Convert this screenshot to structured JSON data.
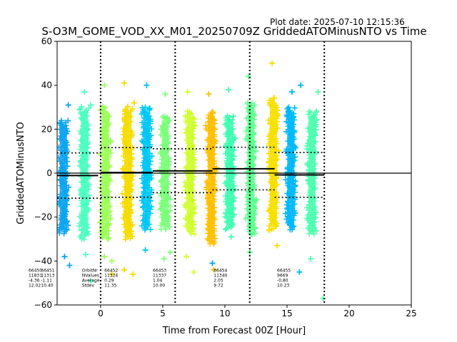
{
  "chart_data": {
    "type": "scatter",
    "title": "S-O3M_GOME_VOD_XX_M01_20250709Z GriddedATOMinusNTO vs Time",
    "plot_date": "Plot date: 2025-07-10 12:15:36",
    "xlabel": "Time from Forecast 00Z [Hour]",
    "ylabel": "GriddedATOMinusNTO",
    "xlim": [
      -3.5,
      25
    ],
    "ylim": [
      -60,
      60
    ],
    "xticks": [
      0,
      5,
      10,
      15,
      20,
      25
    ],
    "yticks": [
      -60,
      -40,
      -20,
      0,
      20,
      40,
      60
    ],
    "grid": false,
    "forecast_boundaries": [
      0,
      6,
      12,
      18
    ],
    "zero_line": 0,
    "marker": "+",
    "colormap": "jet",
    "strips": [
      {
        "x": -3.0,
        "center": -2,
        "half": 26,
        "color": "#0ea5f0"
      },
      {
        "x": -1.3,
        "center": 0,
        "half": 30,
        "color": "#4dffc0"
      },
      {
        "x": 0.4,
        "center": 0,
        "half": 30,
        "color": "#9dff5a"
      },
      {
        "x": 2.2,
        "center": 0,
        "half": 30,
        "color": "#f6dc00"
      },
      {
        "x": 3.7,
        "center": 2,
        "half": 28,
        "color": "#00c8f4"
      },
      {
        "x": 5.2,
        "center": 0,
        "half": 26,
        "color": "#7cff7a"
      },
      {
        "x": 7.2,
        "center": 0,
        "half": 28,
        "color": "#cfff30"
      },
      {
        "x": 8.9,
        "center": -2,
        "half": 30,
        "color": "#ffc000"
      },
      {
        "x": 10.4,
        "center": 0,
        "half": 26,
        "color": "#40ffb0"
      },
      {
        "x": 12.1,
        "center": 2,
        "half": 30,
        "color": "#60ff90"
      },
      {
        "x": 13.9,
        "center": 4,
        "half": 30,
        "color": "#f8e000"
      },
      {
        "x": 15.3,
        "center": 2,
        "half": 28,
        "color": "#00b8f8"
      },
      {
        "x": 17.0,
        "center": 0,
        "half": 28,
        "color": "#50ffb0"
      }
    ],
    "outliers": [
      {
        "x": -2.6,
        "y": 31,
        "color": "#0ea5f0"
      },
      {
        "x": -2.9,
        "y": -38,
        "color": "#0ea5f0"
      },
      {
        "x": -2.5,
        "y": -42,
        "color": "#0ea5f0"
      },
      {
        "x": -1.3,
        "y": 37,
        "color": "#4dffc0"
      },
      {
        "x": -0.8,
        "y": 31,
        "color": "#4dffc0"
      },
      {
        "x": -1.2,
        "y": -37,
        "color": "#4dffc0"
      },
      {
        "x": 0.3,
        "y": 40,
        "color": "#9dff5a"
      },
      {
        "x": 0.3,
        "y": -38,
        "color": "#9dff5a"
      },
      {
        "x": 0.9,
        "y": -40,
        "color": "#9dff5a"
      },
      {
        "x": 1.9,
        "y": 41,
        "color": "#f6dc00"
      },
      {
        "x": 2.7,
        "y": 32,
        "color": "#f6dc00"
      },
      {
        "x": 1.9,
        "y": -44,
        "color": "#f6dc00"
      },
      {
        "x": 2.6,
        "y": -46,
        "color": "#f6dc00"
      },
      {
        "x": 3.7,
        "y": 40,
        "color": "#00c8f4"
      },
      {
        "x": 3.6,
        "y": -35,
        "color": "#00c8f4"
      },
      {
        "x": 5.2,
        "y": 36,
        "color": "#7cff7a"
      },
      {
        "x": 5.1,
        "y": -39,
        "color": "#7cff7a"
      },
      {
        "x": 5.6,
        "y": -36,
        "color": "#7cff7a"
      },
      {
        "x": 7.0,
        "y": 37,
        "color": "#cfff30"
      },
      {
        "x": 7.5,
        "y": -45,
        "color": "#cfff30"
      },
      {
        "x": 6.9,
        "y": -38,
        "color": "#cfff30"
      },
      {
        "x": 8.7,
        "y": 36,
        "color": "#ffc000"
      },
      {
        "x": 9.2,
        "y": 20,
        "color": "#ffc000"
      },
      {
        "x": 9.1,
        "y": -44,
        "color": "#ffc000"
      },
      {
        "x": 9.0,
        "y": -41,
        "color": "#0ea5f0"
      },
      {
        "x": 10.3,
        "y": 38,
        "color": "#40ffb0"
      },
      {
        "x": 10.5,
        "y": -29,
        "color": "#40ffb0"
      },
      {
        "x": 11.9,
        "y": 44,
        "color": "#60ff90"
      },
      {
        "x": 12.0,
        "y": -36,
        "color": "#60ff90"
      },
      {
        "x": 13.8,
        "y": 50,
        "color": "#f8e000"
      },
      {
        "x": 14.2,
        "y": -33,
        "color": "#f8e000"
      },
      {
        "x": 15.4,
        "y": 37,
        "color": "#00b8f8"
      },
      {
        "x": 16.1,
        "y": 40,
        "color": "#00b8f8"
      },
      {
        "x": 16.0,
        "y": -45,
        "color": "#00b8f8"
      },
      {
        "x": 16.9,
        "y": -39,
        "color": "#50ffb0"
      },
      {
        "x": 17.5,
        "y": 37,
        "color": "#50ffb0"
      },
      {
        "x": 17.9,
        "y": -57,
        "color": "#50ffb0"
      },
      {
        "x": -0.8,
        "y": -49,
        "color": "#4dffc0"
      },
      {
        "x": 0.9,
        "y": -46,
        "color": "#f6dc00"
      }
    ],
    "mean_segments": [
      {
        "x0": -3.5,
        "x1": -0.2,
        "y": -1.1
      },
      {
        "x0": 0.0,
        "x1": 4.2,
        "y": 0.3
      },
      {
        "x0": 4.2,
        "x1": 9.0,
        "y": 1.0
      },
      {
        "x0": 9.0,
        "x1": 14.0,
        "y": 2.0
      },
      {
        "x0": 14.0,
        "x1": 18.0,
        "y": -0.8
      }
    ],
    "stdev_segments": [
      {
        "x0": -3.5,
        "x1": 0.0,
        "upper": 9.2,
        "lower": -11.4
      },
      {
        "x0": 0.0,
        "x1": 4.2,
        "upper": 11.6,
        "lower": -11.0
      },
      {
        "x0": 4.2,
        "x1": 9.0,
        "upper": 11.1,
        "lower": -8.9
      },
      {
        "x0": 9.0,
        "x1": 14.0,
        "upper": 11.8,
        "lower": -7.6
      },
      {
        "x0": 14.0,
        "x1": 18.0,
        "upper": 9.4,
        "lower": -11.0
      }
    ],
    "stat_row_labels": {
      "x": -1.5,
      "lines": [
        "OrbitNr",
        "NValues",
        "Average",
        "Stdev"
      ]
    },
    "stat_blocks": [
      {
        "x": -5.8,
        "lines": [
          "66450",
          "11831",
          "-4.36",
          "12.02"
        ]
      },
      {
        "x": -4.8,
        "lines": [
          "66451",
          "11313",
          "-1.11",
          "10.40"
        ]
      },
      {
        "x": 0.3,
        "lines": [
          "66452",
          "11324",
          "0.29",
          "11.35"
        ]
      },
      {
        "x": 4.2,
        "lines": [
          "66453",
          "11337",
          "1.04",
          "10.00"
        ]
      },
      {
        "x": 9.1,
        "lines": [
          "66454",
          "11340",
          "2.05",
          "9.72"
        ]
      },
      {
        "x": 14.2,
        "lines": [
          "66455",
          "9669",
          "-0.80",
          "10.23"
        ]
      }
    ]
  }
}
